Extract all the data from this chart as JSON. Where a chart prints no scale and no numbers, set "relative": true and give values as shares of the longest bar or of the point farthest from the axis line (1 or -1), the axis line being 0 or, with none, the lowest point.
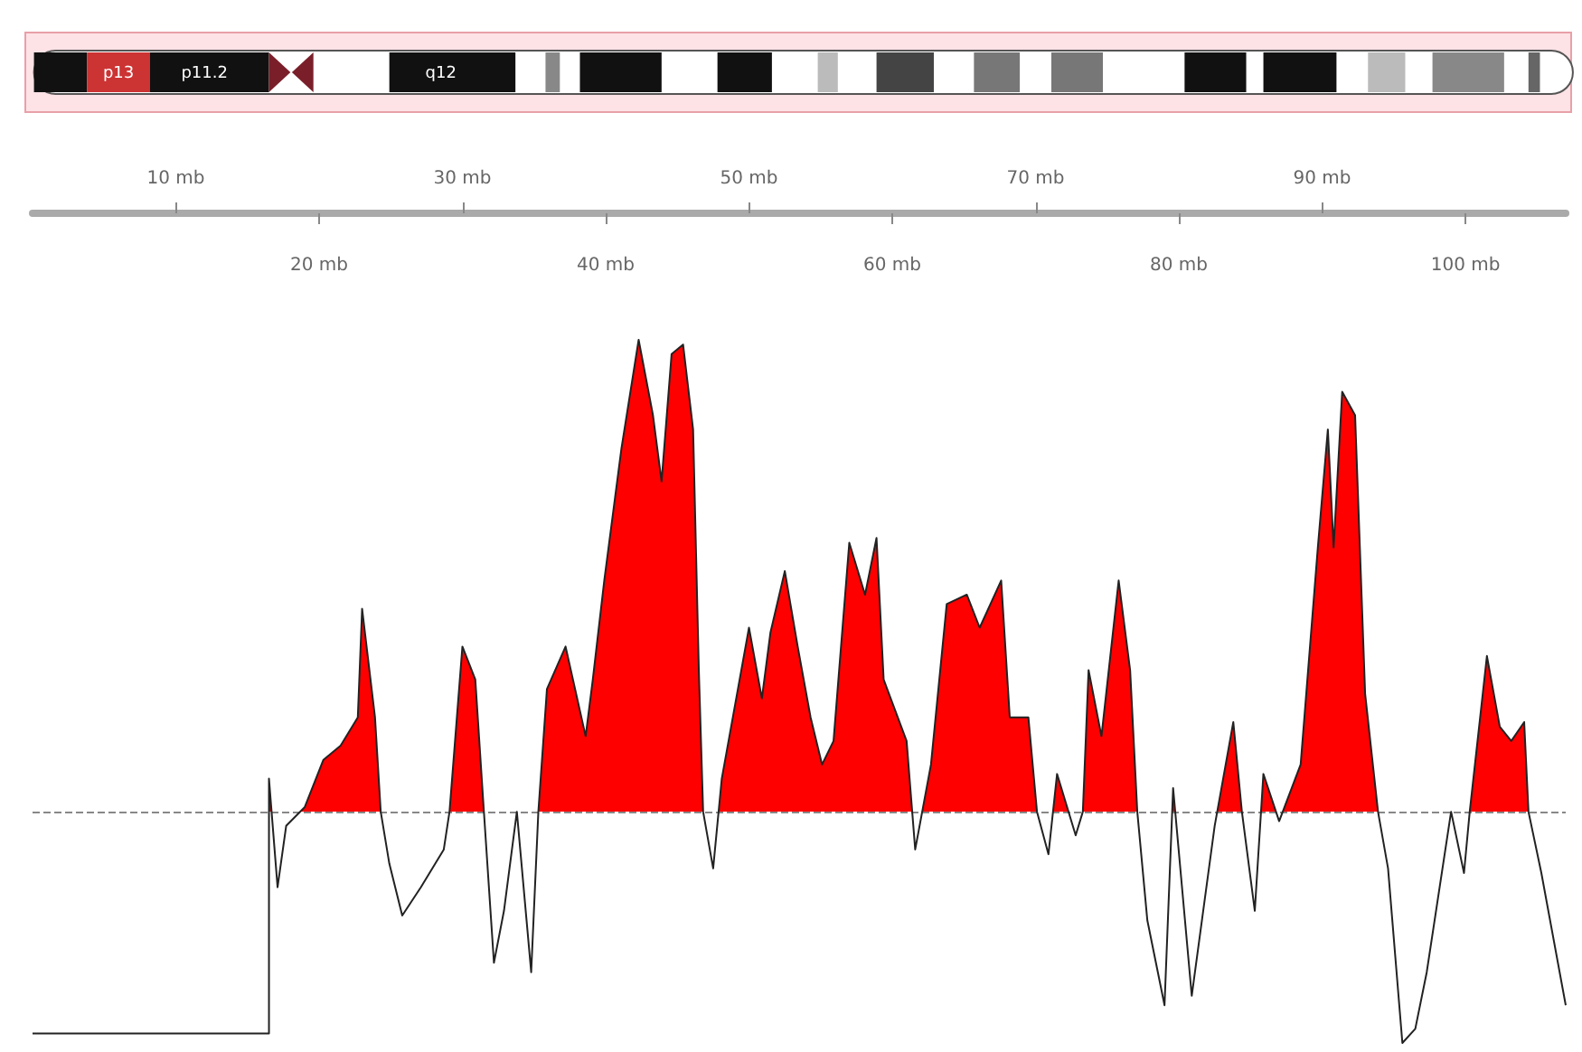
{
  "chart_data": {
    "type": "area",
    "relative": true,
    "xlim": [
      0,
      107
    ],
    "xticks": [
      {
        "value": 20,
        "label": "20 mb"
      },
      {
        "value": 40,
        "label": "40 mb"
      },
      {
        "value": 60,
        "label": "60 mb"
      },
      {
        "value": 80,
        "label": "80 mb"
      },
      {
        "value": 100,
        "label": "100 mb"
      }
    ],
    "x2lim": [
      0,
      107
    ],
    "x2ticks": [
      {
        "value": 10,
        "label": "10 mb"
      },
      {
        "value": 30,
        "label": "30 mb"
      },
      {
        "value": 50,
        "label": "50 mb"
      },
      {
        "value": 70,
        "label": "70 mb"
      },
      {
        "value": 90,
        "label": "90 mb"
      }
    ],
    "annotations": [
      "p13",
      "p11.2",
      "q12"
    ],
    "ref_lines": [
      {
        "axis": "y",
        "value": 0,
        "label": null,
        "color": "#888888",
        "line_style": "dashed"
      }
    ],
    "grid": false,
    "marker": "none",
    "series": [
      {
        "color": "#ff0000",
        "x": [
          0,
          16.5,
          16.5,
          17.1,
          17.7,
          19.0,
          20.3,
          21.5,
          22.7,
          23.0,
          23.9,
          24.3,
          24.9,
          25.8,
          27.1,
          28.7,
          29.1,
          30.0,
          30.9,
          31.5,
          32.2,
          32.9,
          33.8,
          34.8,
          35.3,
          35.9,
          37.2,
          38.6,
          39.1,
          39.9,
          41.1,
          42.3,
          43.3,
          43.9,
          44.6,
          45.4,
          46.1,
          46.5,
          46.8,
          47.5,
          48.1,
          50.0,
          50.9,
          51.5,
          52.5,
          53.4,
          54.3,
          55.1,
          55.9,
          57.0,
          58.1,
          58.9,
          59.4,
          61.0,
          61.6,
          62.7,
          63.8,
          65.2,
          66.1,
          67.6,
          68.2,
          69.5,
          70.1,
          70.9,
          71.5,
          72.8,
          73.3,
          73.7,
          74.6,
          75.8,
          76.6,
          77.1,
          77.8,
          79.0,
          79.6,
          80.9,
          82.5,
          83.8,
          84.4,
          85.3,
          85.9,
          87.0,
          88.5,
          89.7,
          90.4,
          90.8,
          91.4,
          92.3,
          93.0,
          93.9,
          94.6,
          95.6,
          96.5,
          97.3,
          99.0,
          99.9,
          100.3,
          101.5,
          102.4,
          103.2,
          104.1,
          104.4,
          105.3,
          107.0
        ],
        "values": [
          -0.47,
          -0.47,
          0.07,
          -0.16,
          -0.03,
          0.01,
          0.11,
          0.14,
          0.2,
          0.43,
          0.2,
          0,
          -0.11,
          -0.22,
          -0.16,
          -0.08,
          0,
          0.35,
          0.28,
          0,
          -0.32,
          -0.21,
          0,
          -0.34,
          0,
          0.26,
          0.35,
          0.16,
          0.28,
          0.49,
          0.77,
          1,
          0.84,
          0.7,
          0.97,
          0.99,
          0.81,
          0.3,
          0,
          -0.12,
          0.07,
          0.39,
          0.24,
          0.38,
          0.51,
          0.35,
          0.2,
          0.1,
          0.15,
          0.57,
          0.46,
          0.58,
          0.28,
          0.15,
          -0.08,
          0.1,
          0.44,
          0.46,
          0.39,
          0.49,
          0.2,
          0.2,
          0,
          -0.09,
          0.08,
          -0.05,
          0,
          0.3,
          0.16,
          0.49,
          0.3,
          0,
          -0.23,
          -0.41,
          0.05,
          -0.39,
          -0.03,
          0.19,
          0,
          -0.21,
          0.08,
          -0.02,
          0.1,
          0.56,
          0.81,
          0.56,
          0.89,
          0.84,
          0.25,
          0,
          -0.12,
          -0.49,
          -0.46,
          -0.34,
          0,
          -0.13,
          0,
          0.33,
          0.18,
          0.15,
          0.19,
          0,
          -0.13,
          -0.41
        ]
      }
    ]
  }
}
